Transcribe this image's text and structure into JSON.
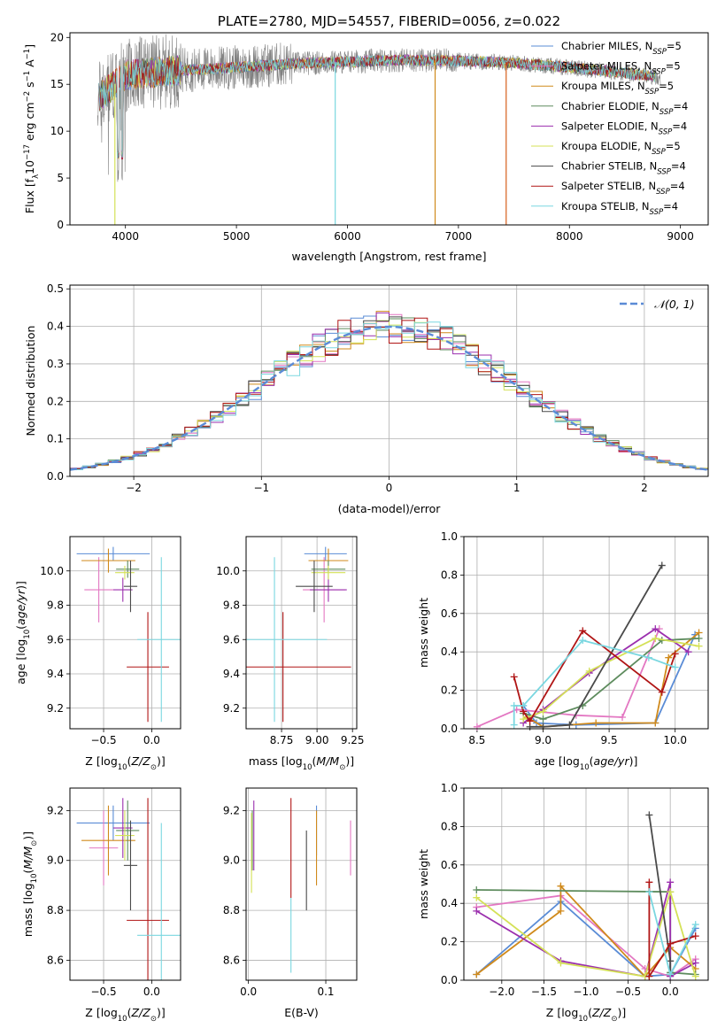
{
  "chart_data": [
    {
      "id": "spectrum",
      "type": "line",
      "title": "PLATE=2780, MJD=54557, FIBERID=0056, z=0.022",
      "xlabel": "wavelength [Angstrom, rest frame]",
      "ylabel_parts": [
        "Flux [f",
        "λ",
        "10",
        "−17",
        " erg cm",
        "−2",
        " s",
        "−1",
        " A",
        "−1",
        "]"
      ],
      "xlim": [
        3500,
        9250
      ],
      "ylim": [
        0,
        20.5
      ],
      "xticks": [
        4000,
        5000,
        6000,
        7000,
        8000,
        9000
      ],
      "yticks": [
        0,
        5,
        10,
        15,
        20
      ],
      "grid": false,
      "legend_position": "top-right",
      "series": [
        {
          "name": "Chabrier MILES, N",
          "sub": "SSP",
          "suffix": "=5",
          "color": "#5a8cd6"
        },
        {
          "name": "Salpeter MILES, N",
          "sub": "SSP",
          "suffix": "=5",
          "color": "#e377c2"
        },
        {
          "name": "Kroupa MILES, N",
          "sub": "SSP",
          "suffix": "=5",
          "color": "#d08a1c"
        },
        {
          "name": "Chabrier ELODIE, N",
          "sub": "SSP",
          "suffix": "=4",
          "color": "#5e8c5e"
        },
        {
          "name": "Salpeter ELODIE, N",
          "sub": "SSP",
          "suffix": "=4",
          "color": "#9b2fae"
        },
        {
          "name": "Kroupa ELODIE, N",
          "sub": "SSP",
          "suffix": "=5",
          "color": "#d4e157"
        },
        {
          "name": "Chabrier STELIB, N",
          "sub": "SSP",
          "suffix": "=4",
          "color": "#4a4a4a"
        },
        {
          "name": "Salpeter STELIB, N",
          "sub": "SSP",
          "suffix": "=4",
          "color": "#b01515"
        },
        {
          "name": "Kroupa STELIB, N",
          "sub": "SSP",
          "suffix": "=4",
          "color": "#7ad7e0"
        }
      ],
      "data_color": "#808080",
      "continuum": {
        "x": [
          3750,
          4000,
          4500,
          5000,
          5500,
          6000,
          6500,
          7000,
          7500,
          8000,
          8500,
          8800
        ],
        "y": [
          13.5,
          16.0,
          16.5,
          16.8,
          17.2,
          17.4,
          17.6,
          17.5,
          17.3,
          16.8,
          16.2,
          15.8
        ]
      }
    },
    {
      "id": "residuals",
      "type": "histogram",
      "xlabel": "(data-model)/error",
      "ylabel": "Normed distribution",
      "xlim": [
        -2.5,
        2.5
      ],
      "ylim": [
        0,
        0.51
      ],
      "xticks": [
        -2,
        -1,
        0,
        1,
        2
      ],
      "yticks": [
        0.0,
        0.1,
        0.2,
        0.3,
        0.4,
        0.5
      ],
      "grid": true,
      "legend_position": "top-right",
      "legend": [
        {
          "label": "𝒩(0, 1)",
          "style": "dashed",
          "color": "#5b8bd6"
        }
      ],
      "bins": {
        "start": -2.5,
        "width": 0.1,
        "count": 50
      },
      "series_colors": [
        "#5a8cd6",
        "#e377c2",
        "#d08a1c",
        "#5e8c5e",
        "#9b2fae",
        "#d4e157",
        "#4a4a4a",
        "#b01515",
        "#7ad7e0"
      ]
    },
    {
      "id": "age-vs-z",
      "type": "errorbar",
      "xlabel": "Z [log10(Z/Z⊙)]",
      "ylabel": "age  [log10(age/yr)]",
      "xlim": [
        -0.85,
        0.3
      ],
      "ylim": [
        9.08,
        10.2
      ],
      "xticks": [
        -0.5,
        0.0
      ],
      "yticks": [
        9.2,
        9.4,
        9.6,
        9.8,
        10.0
      ],
      "grid": true,
      "points": [
        {
          "x": -0.4,
          "y": 10.1,
          "xerr": 0.38,
          "yerr": 0.04,
          "color": "#5a8cd6"
        },
        {
          "x": -0.55,
          "y": 9.89,
          "xerr": 0.15,
          "yerr": 0.19,
          "color": "#e377c2"
        },
        {
          "x": -0.45,
          "y": 10.06,
          "xerr": 0.28,
          "yerr": 0.07,
          "color": "#d08a1c"
        },
        {
          "x": -0.25,
          "y": 10.01,
          "xerr": 0.12,
          "yerr": 0.05,
          "color": "#5e8c5e"
        },
        {
          "x": -0.3,
          "y": 9.89,
          "xerr": 0.1,
          "yerr": 0.07,
          "color": "#9b2fae"
        },
        {
          "x": -0.28,
          "y": 9.99,
          "xerr": 0.1,
          "yerr": 0.04,
          "color": "#d4e157"
        },
        {
          "x": -0.22,
          "y": 9.91,
          "xerr": 0.07,
          "yerr": 0.15,
          "color": "#4a4a4a"
        },
        {
          "x": -0.04,
          "y": 9.44,
          "xerr": 0.22,
          "yerr": 0.32,
          "color": "#b01515"
        },
        {
          "x": 0.1,
          "y": 9.6,
          "xerr": 0.25,
          "yerr": 0.48,
          "color": "#7ad7e0"
        }
      ]
    },
    {
      "id": "age-vs-mass",
      "type": "errorbar",
      "xlabel": "mass [log10(M/M⊙)]",
      "ylabel": "",
      "xlim": [
        8.5,
        9.28
      ],
      "ylim": [
        9.08,
        10.2
      ],
      "xticks": [
        8.75,
        9.0,
        9.25
      ],
      "yticks": [
        9.2,
        9.4,
        9.6,
        9.8,
        10.0
      ],
      "grid": true,
      "points": [
        {
          "x": 9.06,
          "y": 10.1,
          "xerr": 0.15,
          "yerr": 0.04,
          "color": "#5a8cd6"
        },
        {
          "x": 9.05,
          "y": 9.89,
          "xerr": 0.15,
          "yerr": 0.19,
          "color": "#e377c2"
        },
        {
          "x": 9.08,
          "y": 10.06,
          "xerr": 0.14,
          "yerr": 0.07,
          "color": "#d08a1c"
        },
        {
          "x": 9.08,
          "y": 10.01,
          "xerr": 0.12,
          "yerr": 0.05,
          "color": "#5e8c5e"
        },
        {
          "x": 9.08,
          "y": 9.89,
          "xerr": 0.13,
          "yerr": 0.07,
          "color": "#9b2fae"
        },
        {
          "x": 9.08,
          "y": 9.99,
          "xerr": 0.12,
          "yerr": 0.04,
          "color": "#d4e157"
        },
        {
          "x": 8.98,
          "y": 9.91,
          "xerr": 0.13,
          "yerr": 0.15,
          "color": "#4a4a4a"
        },
        {
          "x": 8.76,
          "y": 9.44,
          "xerr": 0.48,
          "yerr": 0.32,
          "color": "#b01515"
        },
        {
          "x": 8.7,
          "y": 9.6,
          "xerr": 0.37,
          "yerr": 0.48,
          "color": "#7ad7e0"
        }
      ]
    },
    {
      "id": "weight-vs-age",
      "type": "line",
      "xlabel": "age  [log10(age/yr)]",
      "ylabel": "mass weight",
      "xlim": [
        8.4,
        10.25
      ],
      "ylim": [
        0,
        1.0
      ],
      "xticks": [
        8.5,
        9.0,
        9.5,
        10.0
      ],
      "yticks": [
        0.0,
        0.2,
        0.4,
        0.6,
        0.8,
        1.0
      ],
      "grid": true,
      "series": [
        {
          "color": "#5a8cd6",
          "x": [
            8.85,
            8.95,
            9.25,
            9.85,
            10.15
          ],
          "y": [
            0.12,
            0.03,
            0.02,
            0.03,
            0.49
          ]
        },
        {
          "color": "#e377c2",
          "x": [
            8.5,
            8.8,
            9.25,
            9.6,
            9.88
          ],
          "y": [
            0.01,
            0.1,
            0.07,
            0.06,
            0.52
          ]
        },
        {
          "color": "#d08a1c",
          "x": [
            8.88,
            9.0,
            9.4,
            9.85,
            9.95,
            10.18
          ],
          "y": [
            0.06,
            0.01,
            0.03,
            0.03,
            0.37,
            0.5
          ]
        },
        {
          "color": "#5e8c5e",
          "x": [
            8.85,
            9.0,
            9.3,
            9.9,
            10.18
          ],
          "y": [
            0.08,
            0.05,
            0.12,
            0.46,
            0.47
          ]
        },
        {
          "color": "#9b2fae",
          "x": [
            8.85,
            9.0,
            9.35,
            9.85,
            10.1
          ],
          "y": [
            0.03,
            0.1,
            0.29,
            0.52,
            0.4
          ]
        },
        {
          "color": "#d4e157",
          "x": [
            8.85,
            9.0,
            9.35,
            9.85,
            10.18
          ],
          "y": [
            0.05,
            0.09,
            0.3,
            0.47,
            0.43
          ]
        },
        {
          "color": "#4a4a4a",
          "x": [
            8.9,
            9.0,
            9.2,
            9.9
          ],
          "y": [
            0.01,
            0.01,
            0.02,
            0.85
          ]
        },
        {
          "color": "#b01515",
          "x": [
            8.78,
            8.85,
            8.9,
            9.3,
            9.9,
            10.0
          ],
          "y": [
            0.27,
            0.09,
            0.04,
            0.51,
            0.19,
            0.39
          ]
        },
        {
          "color": "#7ad7e0",
          "x": [
            8.78,
            8.78,
            8.85,
            9.3,
            9.8,
            10.0
          ],
          "y": [
            0.02,
            0.12,
            0.12,
            0.46,
            0.37,
            0.32
          ]
        }
      ]
    },
    {
      "id": "mass-vs-z",
      "type": "errorbar",
      "xlabel": "Z [log10(Z/Z⊙)]",
      "ylabel": "mass [log10(M/M⊙)]",
      "xlim": [
        -0.85,
        0.3
      ],
      "ylim": [
        8.52,
        9.29
      ],
      "xticks": [
        -0.5,
        0.0
      ],
      "yticks": [
        8.6,
        8.8,
        9.0,
        9.2
      ],
      "grid": true,
      "points": [
        {
          "x": -0.4,
          "y": 9.15,
          "xerr": 0.38,
          "yerr": 0.07,
          "color": "#5a8cd6"
        },
        {
          "x": -0.5,
          "y": 9.05,
          "xerr": 0.15,
          "yerr": 0.15,
          "color": "#e377c2"
        },
        {
          "x": -0.45,
          "y": 9.08,
          "xerr": 0.28,
          "yerr": 0.14,
          "color": "#d08a1c"
        },
        {
          "x": -0.25,
          "y": 9.12,
          "xerr": 0.12,
          "yerr": 0.12,
          "color": "#5e8c5e"
        },
        {
          "x": -0.3,
          "y": 9.13,
          "xerr": 0.1,
          "yerr": 0.12,
          "color": "#9b2fae"
        },
        {
          "x": -0.28,
          "y": 9.1,
          "xerr": 0.1,
          "yerr": 0.1,
          "color": "#d4e157"
        },
        {
          "x": -0.22,
          "y": 8.98,
          "xerr": 0.07,
          "yerr": 0.18,
          "color": "#4a4a4a"
        },
        {
          "x": -0.04,
          "y": 8.76,
          "xerr": 0.22,
          "yerr": 0.49,
          "color": "#b01515"
        },
        {
          "x": 0.1,
          "y": 8.7,
          "xerr": 0.25,
          "yerr": 0.45,
          "color": "#7ad7e0"
        }
      ]
    },
    {
      "id": "mass-vs-ebv",
      "type": "errorbar",
      "xlabel": "E(B-V)",
      "ylabel": "",
      "xlim": [
        -0.003,
        0.14
      ],
      "ylim": [
        8.52,
        9.29
      ],
      "xticks": [
        0.0,
        0.1
      ],
      "yticks": [
        8.6,
        8.8,
        9.0,
        9.2
      ],
      "grid": true,
      "points": [
        {
          "x": 0.088,
          "y": 9.12,
          "xerr": 0,
          "yerr": 0.1,
          "color": "#5a8cd6"
        },
        {
          "x": 0.132,
          "y": 9.05,
          "xerr": 0,
          "yerr": 0.11,
          "color": "#e377c2"
        },
        {
          "x": 0.088,
          "y": 9.05,
          "xerr": 0,
          "yerr": 0.15,
          "color": "#d08a1c"
        },
        {
          "x": 0.005,
          "y": 9.08,
          "xerr": 0,
          "yerr": 0.12,
          "color": "#5e8c5e"
        },
        {
          "x": 0.007,
          "y": 9.1,
          "xerr": 0,
          "yerr": 0.14,
          "color": "#9b2fae"
        },
        {
          "x": 0.004,
          "y": 9.03,
          "xerr": 0,
          "yerr": 0.16,
          "color": "#d4e157"
        },
        {
          "x": 0.075,
          "y": 8.96,
          "xerr": 0,
          "yerr": 0.16,
          "color": "#4a4a4a"
        },
        {
          "x": 0.055,
          "y": 9.05,
          "xerr": 0,
          "yerr": 0.2,
          "color": "#b01515"
        },
        {
          "x": 0.055,
          "y": 8.7,
          "xerr": 0,
          "yerr": 0.15,
          "color": "#7ad7e0"
        }
      ]
    },
    {
      "id": "weight-vs-z",
      "type": "line",
      "xlabel": "Z [log10(Z/Z⊙)]",
      "ylabel": "mass weight",
      "xlim": [
        -2.45,
        0.45
      ],
      "ylim": [
        0,
        1.0
      ],
      "xticks": [
        -2.0,
        -1.5,
        -1.0,
        -0.5,
        0.0
      ],
      "yticks": [
        0.0,
        0.2,
        0.4,
        0.6,
        0.8,
        1.0
      ],
      "grid": true,
      "series": [
        {
          "color": "#5a8cd6",
          "x": [
            -2.3,
            -1.3,
            -0.3,
            0.0,
            0.3
          ],
          "y": [
            0.03,
            0.41,
            0.02,
            0.03,
            0.27
          ]
        },
        {
          "color": "#e377c2",
          "x": [
            -2.3,
            -1.3,
            -0.3,
            0.0,
            0.3
          ],
          "y": [
            0.38,
            0.44,
            0.06,
            0.02,
            0.11
          ]
        },
        {
          "color": "#d08a1c",
          "x": [
            -2.3,
            -1.3,
            -1.3,
            -0.3,
            0.0,
            0.3
          ],
          "y": [
            0.03,
            0.36,
            0.49,
            0.02,
            0.17,
            0.06
          ]
        },
        {
          "color": "#5e8c5e",
          "x": [
            -2.3,
            0.0,
            0.0,
            0.3
          ],
          "y": [
            0.47,
            0.46,
            0.04,
            0.03
          ]
        },
        {
          "color": "#9b2fae",
          "x": [
            -2.3,
            -1.3,
            -0.3,
            0.0,
            0.0,
            0.3
          ],
          "y": [
            0.36,
            0.1,
            0.02,
            0.51,
            0.02,
            0.09
          ]
        },
        {
          "color": "#d4e157",
          "x": [
            -2.3,
            -1.3,
            -0.3,
            0.0,
            0.3
          ],
          "y": [
            0.43,
            0.09,
            0.02,
            0.46,
            0.02
          ]
        },
        {
          "color": "#4a4a4a",
          "x": [
            -0.25,
            0.0,
            0.0
          ],
          "y": [
            0.86,
            0.1,
            0.03
          ]
        },
        {
          "color": "#b01515",
          "x": [
            -0.25,
            -0.25,
            0.0,
            0.3
          ],
          "y": [
            0.51,
            0.02,
            0.19,
            0.23
          ]
        },
        {
          "color": "#7ad7e0",
          "x": [
            -0.25,
            0.0,
            0.3
          ],
          "y": [
            0.46,
            0.03,
            0.29
          ]
        }
      ]
    }
  ]
}
